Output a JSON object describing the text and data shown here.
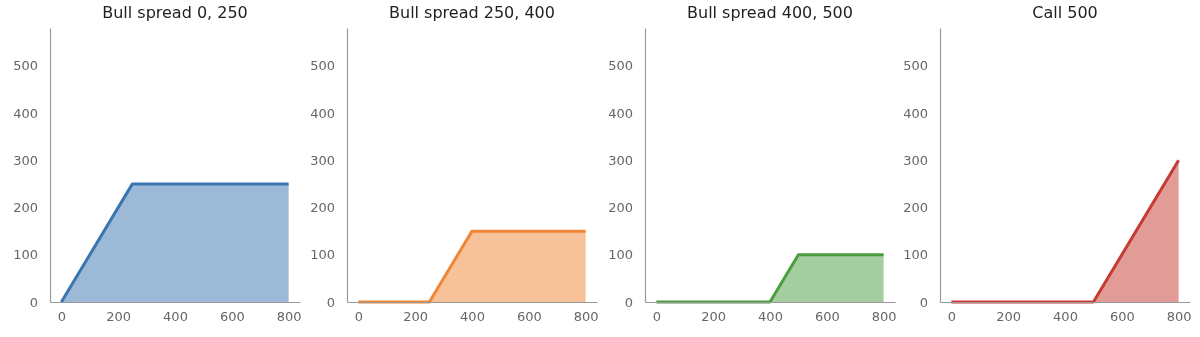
{
  "chart_data": [
    {
      "type": "area",
      "title": "Bull spread 0, 250",
      "x": [
        0,
        250,
        800
      ],
      "series": [
        {
          "color": "#3a75b0",
          "values": [
            0,
            250,
            250
          ]
        }
      ],
      "xlim": [
        -40,
        840
      ],
      "ylim": [
        0,
        580
      ],
      "xticks": [
        0,
        200,
        400,
        600,
        800
      ],
      "yticks": [
        0,
        100,
        200,
        300,
        400,
        500
      ],
      "grid": false
    },
    {
      "type": "area",
      "title": "Bull spread 250, 400",
      "x": [
        0,
        250,
        400,
        800
      ],
      "series": [
        {
          "color": "#ef8636",
          "values": [
            0,
            0,
            150,
            150
          ]
        }
      ],
      "xlim": [
        -40,
        840
      ],
      "ylim": [
        0,
        580
      ],
      "xticks": [
        0,
        200,
        400,
        600,
        800
      ],
      "yticks": [
        0,
        100,
        200,
        300,
        400,
        500
      ],
      "grid": false
    },
    {
      "type": "area",
      "title": "Bull spread 400, 500",
      "x": [
        0,
        400,
        500,
        800
      ],
      "series": [
        {
          "color": "#4a9e3f",
          "values": [
            0,
            0,
            100,
            100
          ]
        }
      ],
      "xlim": [
        -40,
        840
      ],
      "ylim": [
        0,
        580
      ],
      "xticks": [
        0,
        200,
        400,
        600,
        800
      ],
      "yticks": [
        0,
        100,
        200,
        300,
        400,
        500
      ],
      "grid": false
    },
    {
      "type": "area",
      "title": "Call 500",
      "x": [
        0,
        500,
        800
      ],
      "series": [
        {
          "color": "#c53a32",
          "values": [
            0,
            0,
            300
          ]
        }
      ],
      "xlim": [
        -40,
        840
      ],
      "ylim": [
        0,
        580
      ],
      "xticks": [
        0,
        200,
        400,
        600,
        800
      ],
      "yticks": [
        0,
        100,
        200,
        300,
        400,
        500
      ],
      "grid": false
    }
  ]
}
